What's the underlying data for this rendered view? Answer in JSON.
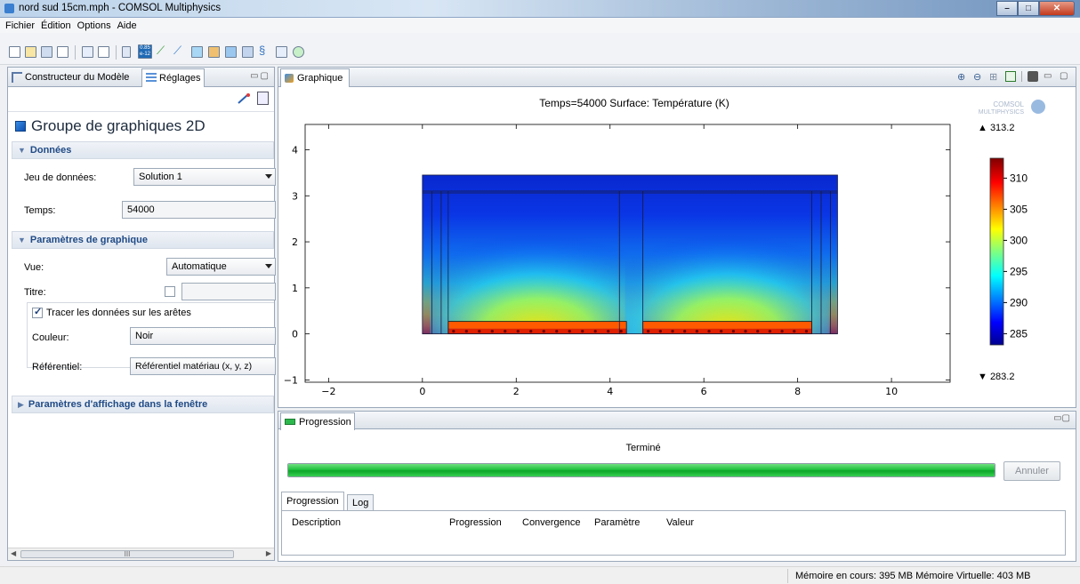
{
  "window": {
    "title": "nord sud 15cm.mph - COMSOL Multiphysics"
  },
  "menu": [
    "Fichier",
    "Édition",
    "Options",
    "Aide"
  ],
  "toolbar": {
    "grid_icon_text": "0.85\ne-12"
  },
  "left_panel": {
    "tabs": [
      "Constructeur du Modèle",
      "Réglages"
    ],
    "group_title": "Groupe de graphiques 2D",
    "section_data": "Données",
    "dataset_label": "Jeu de données:",
    "dataset_value": "Solution 1",
    "time_label": "Temps:",
    "time_value": "54000",
    "section_plot": "Paramètres de graphique",
    "view_label": "Vue:",
    "view_value": "Automatique",
    "title_label": "Titre:",
    "edges_label": "Tracer les données sur les arêtes",
    "color_label": "Couleur:",
    "color_value": "Noir",
    "frame_label": "Référentiel:",
    "frame_value": "Référentiel matériau  (x, y, z)",
    "section_window": "Paramètres d'affichage dans la fenêtre",
    "scroll_mark": "III"
  },
  "graph": {
    "tab": "Graphique",
    "logo_line1": "COMSOL",
    "logo_line2": "MULTIPHYSICS"
  },
  "chart_data": {
    "type": "heatmap",
    "title": "Temps=54000  Surface: Température (K)",
    "xlabel": "",
    "ylabel": "",
    "x_ticks": [
      -2,
      0,
      2,
      4,
      6,
      8,
      10
    ],
    "y_ticks": [
      -1,
      0,
      1,
      2,
      3,
      4
    ],
    "xlim": [
      -2.5,
      11.25
    ],
    "ylim": [
      -1.05,
      4.55
    ],
    "colorbar": {
      "max_label": "▲ 313.2",
      "min_label": "▼ 283.2",
      "ticks": [
        310,
        305,
        300,
        295,
        290,
        285
      ],
      "range": [
        283.2,
        313.2
      ]
    },
    "domain": {
      "x": [
        0,
        8.85
      ],
      "y": [
        0,
        3.45
      ]
    },
    "heater_bands": [
      {
        "x": [
          0.55,
          4.35
        ]
      },
      {
        "x": [
          4.7,
          8.3
        ]
      }
    ]
  },
  "progress": {
    "tab": "Progression",
    "status": "Terminé",
    "percent": 100,
    "cancel": "Annuler",
    "subtabs": [
      "Progression",
      "Log"
    ],
    "columns": [
      "Description",
      "Progression",
      "Convergence",
      "Paramètre",
      "Valeur"
    ]
  },
  "statusbar": {
    "memory": "Mémoire en cours: 395 MB  Mémoire Virtuelle: 403 MB"
  }
}
